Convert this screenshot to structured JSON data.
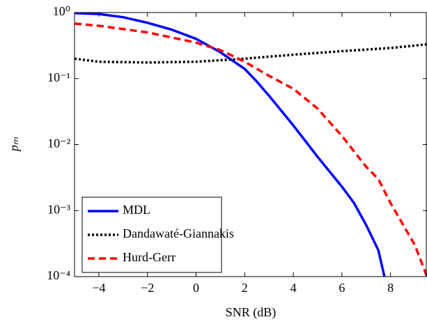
{
  "chart_data": {
    "type": "line",
    "xlabel": "SNR (dB)",
    "ylabel": "pₘ",
    "xlim": [
      -5,
      9.5
    ],
    "ylim": [
      0.0001,
      1
    ],
    "yscale": "log",
    "grid": false,
    "legend": "lower left",
    "xticks": [
      {
        "value": -4,
        "label": "−4"
      },
      {
        "value": -2,
        "label": "−2"
      },
      0,
      2,
      4,
      6,
      8
    ],
    "yticks": [
      {
        "value": 0.0001,
        "label": "10⁻⁴"
      },
      {
        "value": 0.001,
        "label": "10⁻³"
      },
      {
        "value": 0.01,
        "label": "10⁻²"
      },
      {
        "value": 0.1,
        "label": "10⁻¹"
      },
      {
        "value": 1,
        "label": "10⁰"
      }
    ],
    "series": [
      {
        "name": "MDL",
        "color": "#0000ff",
        "linestyle": "solid",
        "x": [
          -5,
          -4,
          -3,
          -2,
          -1,
          0,
          1,
          2,
          2.5,
          3,
          4,
          5,
          6,
          6.5,
          7,
          7.5,
          7.75
        ],
        "values": [
          0.98,
          0.95,
          0.85,
          0.7,
          0.55,
          0.4,
          0.25,
          0.14,
          0.09,
          0.055,
          0.0195,
          0.0065,
          0.0023,
          0.0013,
          0.0006,
          0.00025,
          0.0001
        ]
      },
      {
        "name": "Dandawaté-Giannakis",
        "color": "#000000",
        "linestyle": "dotted",
        "x": [
          -5,
          -4,
          -2,
          0,
          2,
          4,
          6,
          8,
          9.5
        ],
        "values": [
          0.2,
          0.18,
          0.175,
          0.18,
          0.2,
          0.23,
          0.26,
          0.29,
          0.33
        ]
      },
      {
        "name": "Hurd-Gerr",
        "color": "#ff0000",
        "linestyle": "dashed",
        "x": [
          -5,
          -4,
          -2,
          0,
          1,
          2,
          3,
          4,
          5,
          6,
          7,
          7.5,
          8,
          9,
          9.5
        ],
        "values": [
          0.68,
          0.63,
          0.5,
          0.35,
          0.27,
          0.18,
          0.11,
          0.07,
          0.035,
          0.0135,
          0.0046,
          0.003,
          0.0013,
          0.0003,
          0.0001
        ]
      }
    ]
  }
}
